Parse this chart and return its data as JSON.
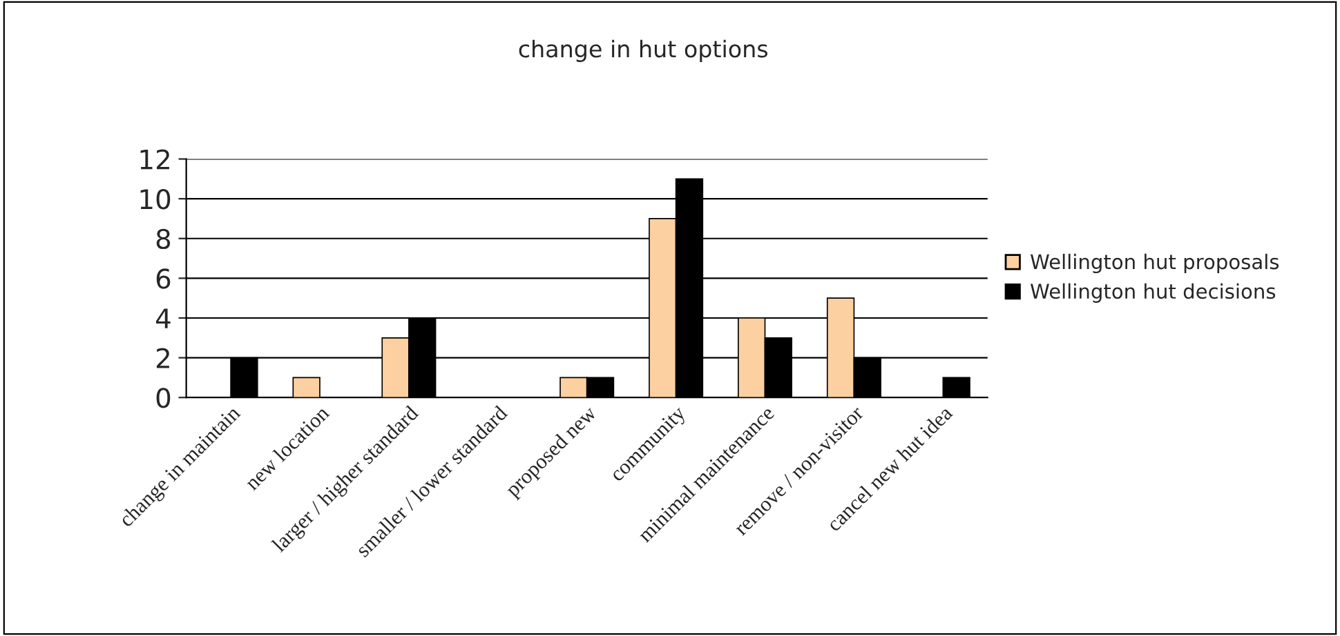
{
  "chart_data": {
    "type": "bar",
    "title": "change in hut options",
    "categories": [
      "change in maintain",
      "new location",
      "larger / higher standard",
      "smaller / lower standard",
      "proposed new",
      "community",
      "minimal maintenance",
      "remove / non-visitor",
      "cancel new hut idea"
    ],
    "series": [
      {
        "name": "Wellington hut proposals",
        "color": "#fcd0a0",
        "values": [
          null,
          1,
          3,
          null,
          1,
          9,
          4,
          5,
          null
        ]
      },
      {
        "name": "Wellington hut decisions",
        "color": "#000000",
        "values": [
          2,
          null,
          4,
          null,
          1,
          11,
          3,
          2,
          1
        ]
      }
    ],
    "ylim": [
      0,
      12
    ],
    "yticks": [
      0,
      2,
      4,
      6,
      8,
      10,
      12
    ],
    "grid": "y",
    "legend": "right"
  }
}
